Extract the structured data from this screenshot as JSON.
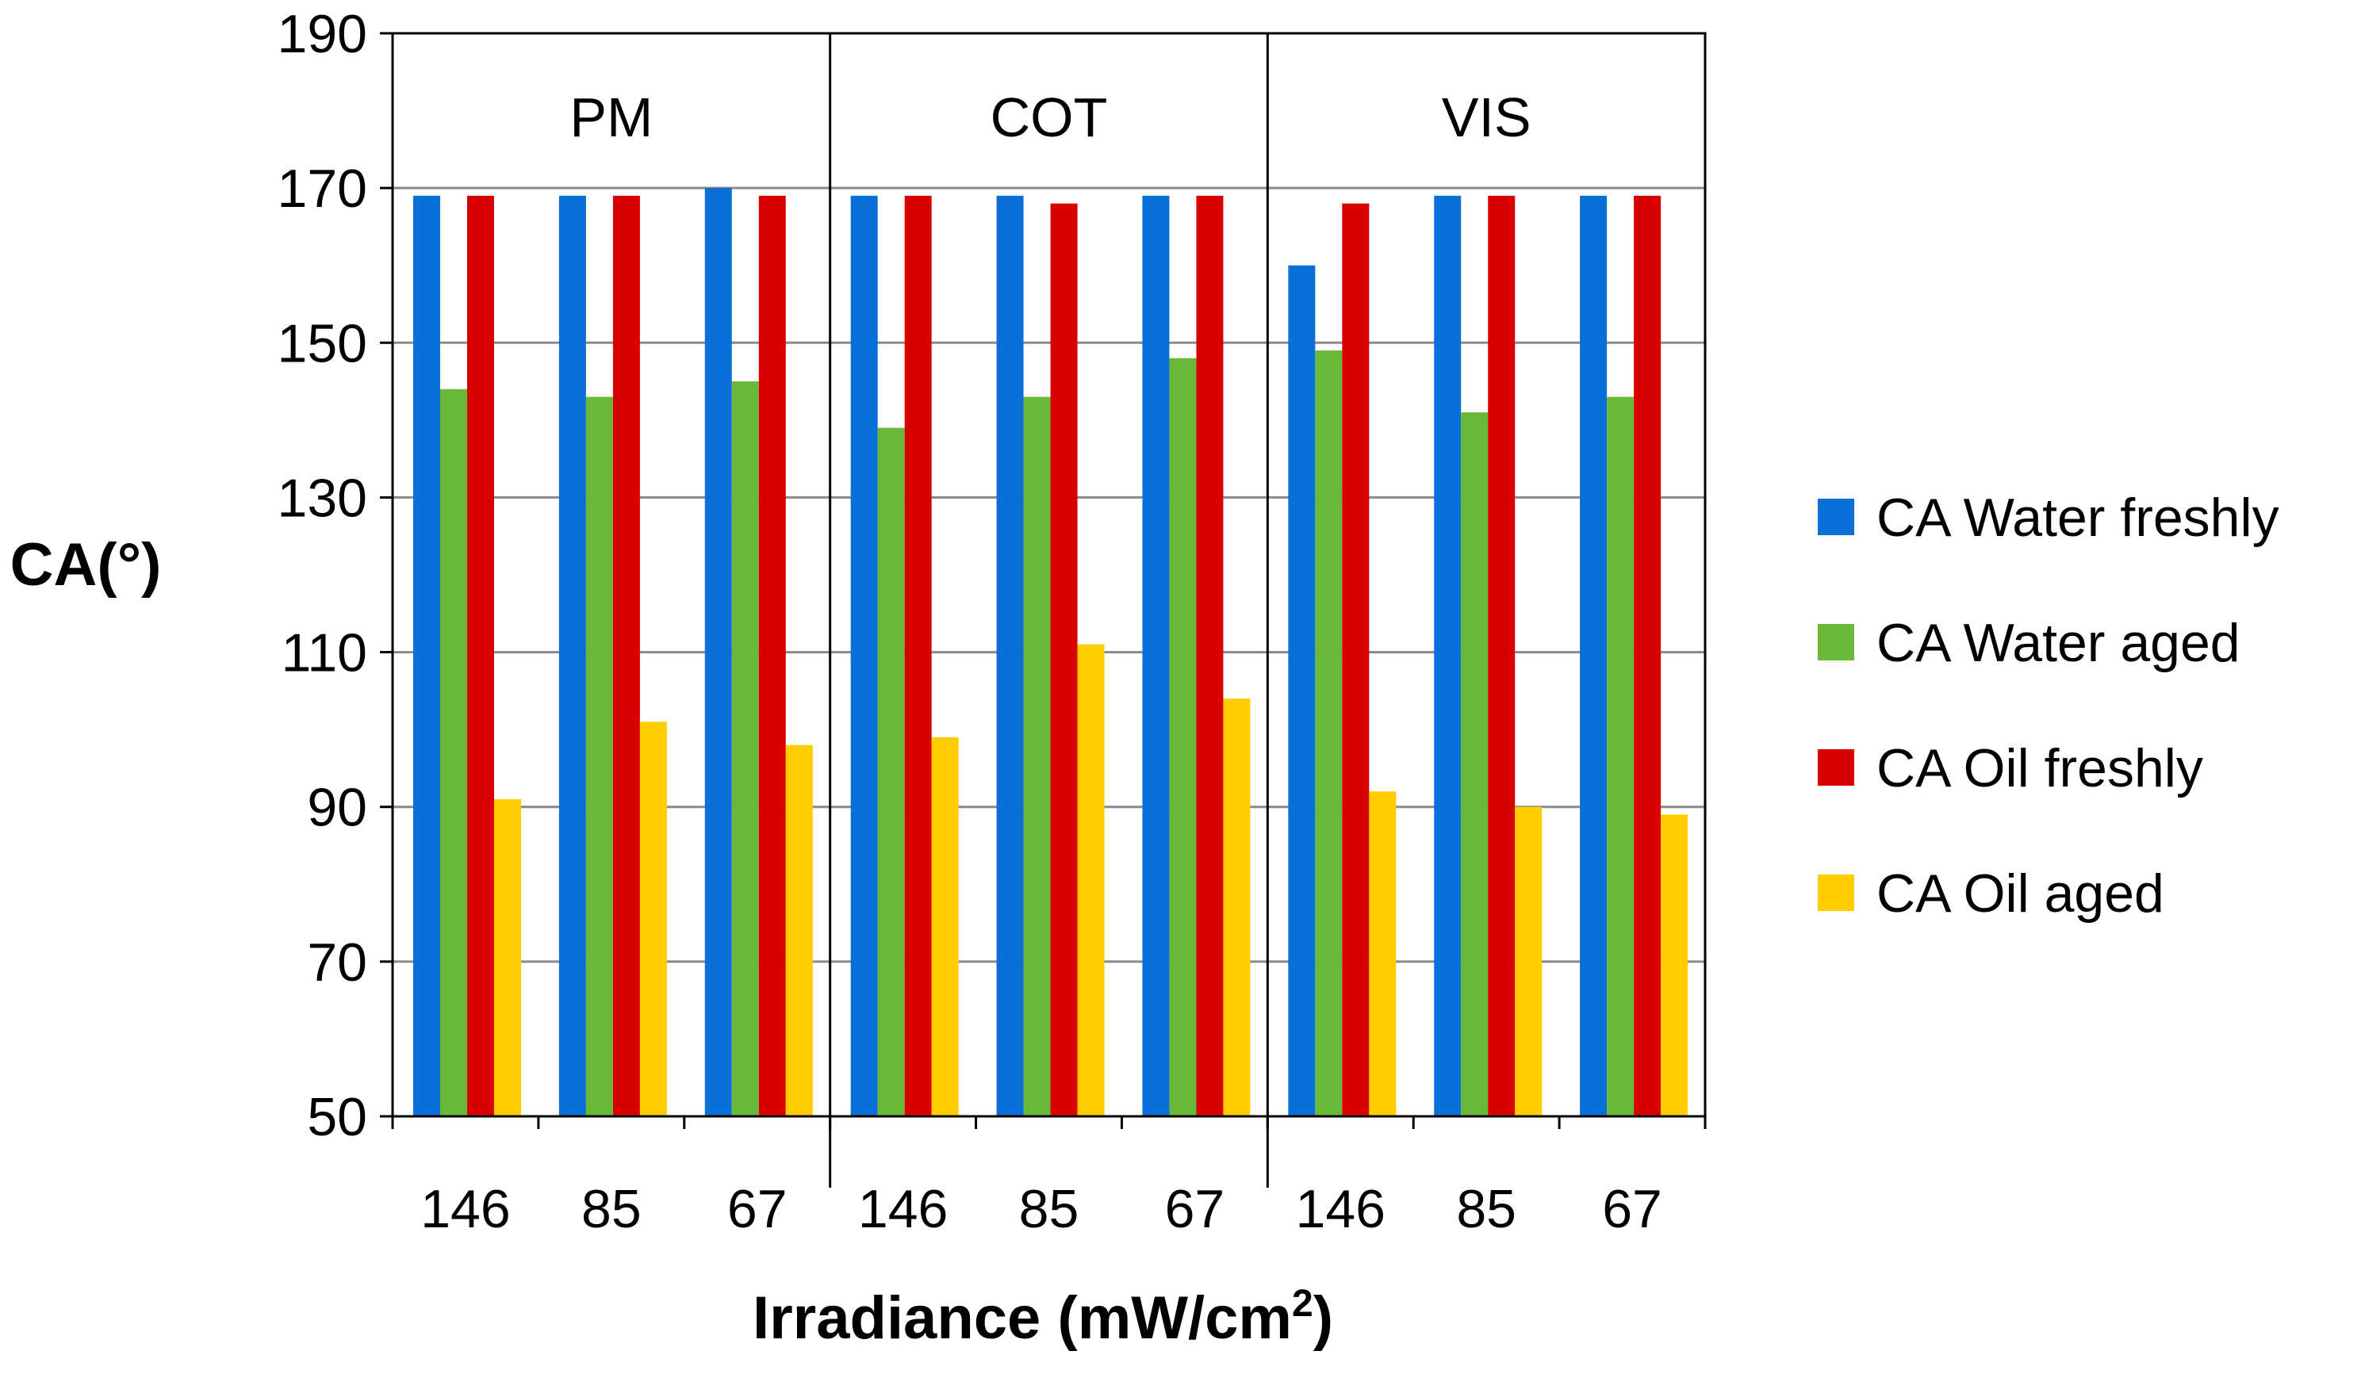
{
  "chart_data": {
    "type": "bar",
    "title": "",
    "ylabel": "CA(°)",
    "xlabel_main": "Irradiance (mW/cm",
    "xlabel_sup": "2",
    "xlabel_close": ")",
    "ylim": [
      50,
      190
    ],
    "yticks": [
      50,
      70,
      90,
      110,
      130,
      150,
      170,
      190
    ],
    "groups": [
      {
        "name": "PM",
        "categories": [
          "146",
          "85",
          "67"
        ]
      },
      {
        "name": "COT",
        "categories": [
          "146",
          "85",
          "67"
        ]
      },
      {
        "name": "VIS",
        "categories": [
          "146",
          "85",
          "67"
        ]
      }
    ],
    "categories": [
      "146",
      "85",
      "67",
      "146",
      "85",
      "67",
      "146",
      "85",
      "67"
    ],
    "series": [
      {
        "name": "CA Water freshly",
        "color": "#0a6fd6",
        "values": [
          169,
          169,
          170,
          169,
          169,
          169,
          160,
          169,
          169
        ]
      },
      {
        "name": "CA Water aged",
        "color": "#6ab83a",
        "values": [
          144,
          143,
          145,
          139,
          143,
          148,
          149,
          141,
          143
        ]
      },
      {
        "name": "CA Oil freshly",
        "color": "#d90000",
        "values": [
          169,
          169,
          169,
          169,
          168,
          169,
          168,
          169,
          169
        ]
      },
      {
        "name": "CA Oil aged",
        "color": "#ffcc00",
        "values": [
          91,
          101,
          98,
          99,
          111,
          104,
          92,
          90,
          89
        ]
      }
    ],
    "grid": true,
    "legend": "right"
  }
}
